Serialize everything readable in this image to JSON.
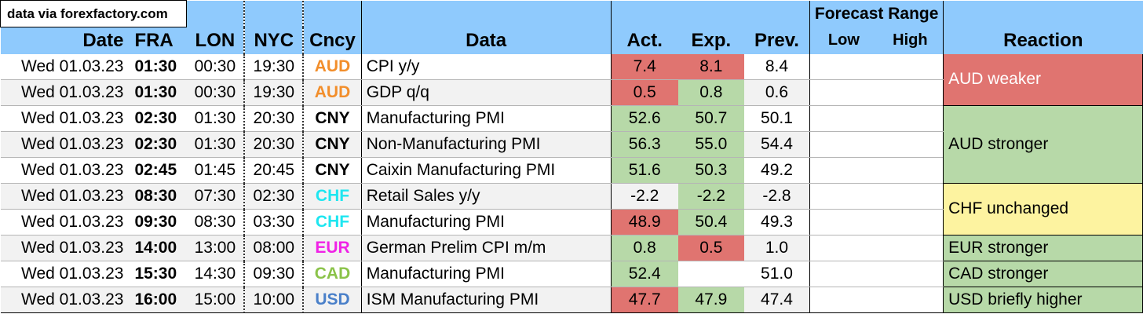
{
  "source_note": "data via forexfactory.com",
  "headers": {
    "date": "Date",
    "fra": "FRA",
    "lon": "LON",
    "nyc": "NYC",
    "cncy": "Cncy",
    "data": "Data",
    "act": "Act.",
    "exp": "Exp.",
    "prev": "Prev.",
    "forecast_range": "Forecast Range",
    "low": "Low",
    "high": "High",
    "reaction": "Reaction"
  },
  "rows": [
    {
      "date": "Wed 01.03.23",
      "fra": "01:30",
      "lon": "00:30",
      "nyc": "19:30",
      "cncy": "AUD",
      "event": "CPI y/y",
      "act": "7.4",
      "exp": "8.1",
      "prev": "8.4",
      "low": "",
      "high": ""
    },
    {
      "date": "Wed 01.03.23",
      "fra": "01:30",
      "lon": "00:30",
      "nyc": "19:30",
      "cncy": "AUD",
      "event": "GDP q/q",
      "act": "0.5",
      "exp": "0.8",
      "prev": "0.6",
      "low": "",
      "high": ""
    },
    {
      "date": "Wed 01.03.23",
      "fra": "02:30",
      "lon": "01:30",
      "nyc": "20:30",
      "cncy": "CNY",
      "event": "Manufacturing PMI",
      "act": "52.6",
      "exp": "50.7",
      "prev": "50.1",
      "low": "",
      "high": ""
    },
    {
      "date": "Wed 01.03.23",
      "fra": "02:30",
      "lon": "01:30",
      "nyc": "20:30",
      "cncy": "CNY",
      "event": "Non-Manufacturing PMI",
      "act": "56.3",
      "exp": "55.0",
      "prev": "54.4",
      "low": "",
      "high": ""
    },
    {
      "date": "Wed 01.03.23",
      "fra": "02:45",
      "lon": "01:45",
      "nyc": "20:45",
      "cncy": "CNY",
      "event": "Caixin Manufacturing PMI",
      "act": "51.6",
      "exp": "50.3",
      "prev": "49.2",
      "low": "",
      "high": ""
    },
    {
      "date": "Wed 01.03.23",
      "fra": "08:30",
      "lon": "07:30",
      "nyc": "02:30",
      "cncy": "CHF",
      "event": "Retail Sales y/y",
      "act": "-2.2",
      "exp": "-2.2",
      "prev": "-2.8",
      "low": "",
      "high": ""
    },
    {
      "date": "Wed 01.03.23",
      "fra": "09:30",
      "lon": "08:30",
      "nyc": "03:30",
      "cncy": "CHF",
      "event": "Manufacturing PMI",
      "act": "48.9",
      "exp": "50.4",
      "prev": "49.3",
      "low": "",
      "high": ""
    },
    {
      "date": "Wed 01.03.23",
      "fra": "14:00",
      "lon": "13:00",
      "nyc": "08:00",
      "cncy": "EUR",
      "event": "German Prelim CPI m/m",
      "act": "0.8",
      "exp": "0.5",
      "prev": "1.0",
      "low": "",
      "high": ""
    },
    {
      "date": "Wed 01.03.23",
      "fra": "15:30",
      "lon": "14:30",
      "nyc": "09:30",
      "cncy": "CAD",
      "event": "Manufacturing PMI",
      "act": "52.4",
      "exp": "",
      "prev": "51.0",
      "low": "",
      "high": ""
    },
    {
      "date": "Wed 01.03.23",
      "fra": "16:00",
      "lon": "15:00",
      "nyc": "10:00",
      "cncy": "USD",
      "event": "ISM Manufacturing PMI",
      "act": "47.7",
      "exp": "47.9",
      "prev": "47.4",
      "low": "",
      "high": ""
    }
  ],
  "reactions": [
    {
      "text": "AUD weaker",
      "rows": 2,
      "color": "#e07470",
      "text_color": "#ffffff"
    },
    {
      "text": "AUD stronger",
      "rows": 3,
      "color": "#b7d9a8",
      "text_color": "#000000"
    },
    {
      "text": "CHF unchanged",
      "rows": 2,
      "color": "#fdf3a0",
      "text_color": "#000000"
    },
    {
      "text": "EUR stronger",
      "rows": 1,
      "color": "#b7d9a8",
      "text_color": "#000000"
    },
    {
      "text": "CAD stronger",
      "rows": 1,
      "color": "#b7d9a8",
      "text_color": "#000000"
    },
    {
      "text": "USD briefly higher",
      "rows": 1,
      "color": "#b7d9a8",
      "text_color": "#000000"
    }
  ],
  "currency_colors": {
    "AUD": "#f28e2b",
    "CNY": "#000000",
    "CHF": "#1ee6f0",
    "EUR": "#f022e6",
    "CAD": "#8bc34a",
    "USD": "#4a80c9"
  },
  "cell_colors": {
    "red": "#e07470",
    "green": "#b7d9a8"
  },
  "act_colors": [
    "red",
    "red",
    "green",
    "green",
    "green",
    "",
    "red",
    "green",
    "green",
    "red"
  ],
  "exp_colors": [
    "red",
    "green",
    "green",
    "green",
    "green",
    "green",
    "green",
    "red",
    "",
    "green"
  ]
}
